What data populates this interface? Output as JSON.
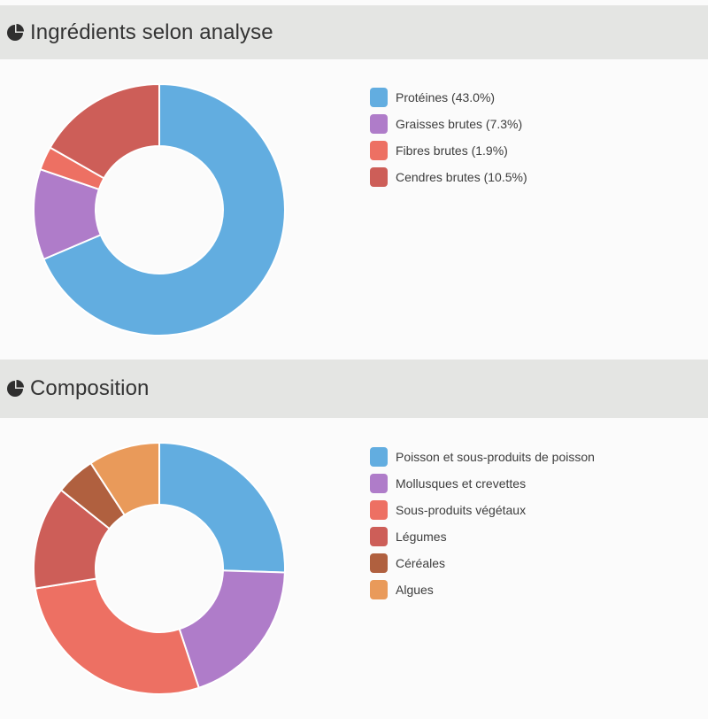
{
  "sections": [
    {
      "title": "Ingrédients selon analyse",
      "icon": "pie-chart-icon",
      "legend": [
        "Protéines (43.0%)",
        "Graisses brutes (7.3%)",
        "Fibres brutes (1.9%)",
        "Cendres brutes (10.5%)"
      ]
    },
    {
      "title": "Composition",
      "icon": "pie-chart-icon",
      "legend": [
        "Poisson et sous-produits de poisson",
        "Mollusques et crevettes",
        "Sous-produits végétaux",
        "Légumes",
        "Céréales",
        "Algues"
      ]
    }
  ],
  "chart_data": [
    {
      "type": "pie",
      "subtype": "donut",
      "title": "Ingrédients selon analyse",
      "categories": [
        "Protéines",
        "Graisses brutes",
        "Fibres brutes",
        "Cendres brutes"
      ],
      "values": [
        43.0,
        7.3,
        1.9,
        10.5
      ],
      "colors": [
        "#62ade0",
        "#af7cc9",
        "#ed7063",
        "#cd5e58"
      ],
      "legend_position": "right"
    },
    {
      "type": "pie",
      "subtype": "donut",
      "title": "Composition",
      "categories": [
        "Poisson et sous-produits de poisson",
        "Mollusques et crevettes",
        "Sous-produits végétaux",
        "Légumes",
        "Céréales",
        "Algues"
      ],
      "values": [
        25,
        19,
        27,
        13,
        5,
        9
      ],
      "colors": [
        "#62ade0",
        "#af7cc9",
        "#ed7063",
        "#cd5e58",
        "#b0603f",
        "#e99a5a"
      ],
      "legend_position": "right"
    }
  ]
}
